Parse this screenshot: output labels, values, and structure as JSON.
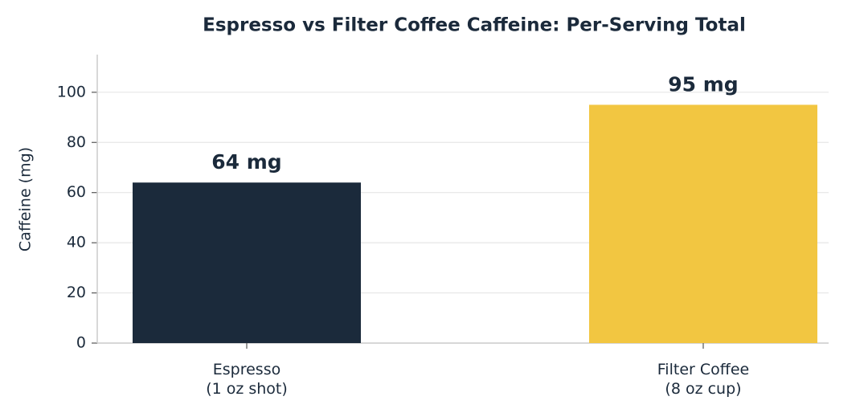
{
  "chart_data": {
    "type": "bar",
    "title": "Espresso vs Filter Coffee Caffeine: Per-Serving Total",
    "y_label": "Caffeine (mg)",
    "categories": [
      "Espresso\n(1 oz shot)",
      "Filter Coffee\n(8 oz cup)"
    ],
    "values": [
      64,
      95
    ],
    "value_labels": [
      "64 mg",
      "95 mg"
    ],
    "colors": [
      "#1b2a3b",
      "#f2c641"
    ],
    "ylim": [
      0,
      115
    ],
    "yticks": [
      0,
      20,
      40,
      60,
      80,
      100
    ],
    "grid": true
  }
}
